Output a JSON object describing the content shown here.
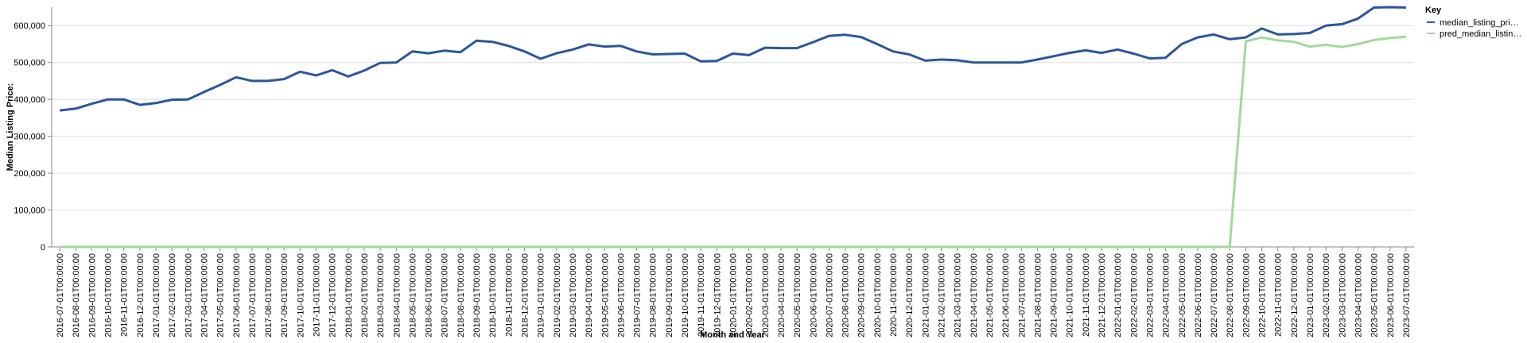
{
  "chart_data": {
    "type": "line",
    "x_label": "Month and Year",
    "y_label": "Median Listing Price:",
    "legend_title": "Key",
    "legend_position": "right",
    "grid": true,
    "categories": [
      "2016-07-01T00:00:00",
      "2016-08-01T00:00:00",
      "2016-09-01T00:00:00",
      "2016-10-01T00:00:00",
      "2016-11-01T00:00:00",
      "2016-12-01T00:00:00",
      "2017-01-01T00:00:00",
      "2017-02-01T00:00:00",
      "2017-03-01T00:00:00",
      "2017-04-01T00:00:00",
      "2017-05-01T00:00:00",
      "2017-06-01T00:00:00",
      "2017-07-01T00:00:00",
      "2017-08-01T00:00:00",
      "2017-09-01T00:00:00",
      "2017-10-01T00:00:00",
      "2017-11-01T00:00:00",
      "2017-12-01T00:00:00",
      "2018-01-01T00:00:00",
      "2018-02-01T00:00:00",
      "2018-03-01T00:00:00",
      "2018-04-01T00:00:00",
      "2018-05-01T00:00:00",
      "2018-06-01T00:00:00",
      "2018-07-01T00:00:00",
      "2018-08-01T00:00:00",
      "2018-09-01T00:00:00",
      "2018-10-01T00:00:00",
      "2018-11-01T00:00:00",
      "2018-12-01T00:00:00",
      "2019-01-01T00:00:00",
      "2019-02-01T00:00:00",
      "2019-03-01T00:00:00",
      "2019-04-01T00:00:00",
      "2019-05-01T00:00:00",
      "2019-06-01T00:00:00",
      "2019-07-01T00:00:00",
      "2019-08-01T00:00:00",
      "2019-09-01T00:00:00",
      "2019-10-01T00:00:00",
      "2019-11-01T00:00:00",
      "2019-12-01T00:00:00",
      "2020-01-01T00:00:00",
      "2020-02-01T00:00:00",
      "2020-03-01T00:00:00",
      "2020-04-01T00:00:00",
      "2020-05-01T00:00:00",
      "2020-06-01T00:00:00",
      "2020-07-01T00:00:00",
      "2020-08-01T00:00:00",
      "2020-09-01T00:00:00",
      "2020-10-01T00:00:00",
      "2020-11-01T00:00:00",
      "2020-12-01T00:00:00",
      "2021-01-01T00:00:00",
      "2021-02-01T00:00:00",
      "2021-03-01T00:00:00",
      "2021-04-01T00:00:00",
      "2021-05-01T00:00:00",
      "2021-06-01T00:00:00",
      "2021-07-01T00:00:00",
      "2021-08-01T00:00:00",
      "2021-09-01T00:00:00",
      "2021-10-01T00:00:00",
      "2021-11-01T00:00:00",
      "2021-12-01T00:00:00",
      "2022-01-01T00:00:00",
      "2022-02-01T00:00:00",
      "2022-03-01T00:00:00",
      "2022-04-01T00:00:00",
      "2022-05-01T00:00:00",
      "2022-06-01T00:00:00",
      "2022-07-01T00:00:00",
      "2022-08-01T00:00:00",
      "2022-09-01T00:00:00",
      "2022-10-01T00:00:00",
      "2022-11-01T00:00:00",
      "2022-12-01T00:00:00",
      "2023-01-01T00:00:00",
      "2023-02-01T00:00:00",
      "2023-03-01T00:00:00",
      "2023-04-01T00:00:00",
      "2023-05-01T00:00:00",
      "2023-06-01T00:00:00",
      "2023-07-01T00:00:00"
    ],
    "series": [
      {
        "name": "median_listing_pri…",
        "color": "#2b5699",
        "values": [
          370000,
          375000,
          388000,
          400000,
          400000,
          385000,
          390000,
          399000,
          400000,
          420000,
          439000,
          460000,
          450000,
          450000,
          455000,
          475000,
          465000,
          479000,
          462000,
          478000,
          499000,
          500000,
          530000,
          525000,
          532000,
          528000,
          559000,
          556000,
          545000,
          530000,
          510000,
          525000,
          535000,
          549000,
          543000,
          545000,
          530000,
          522000,
          523000,
          524000,
          503000,
          504000,
          524000,
          520000,
          540000,
          539000,
          539000,
          555000,
          572000,
          575000,
          569000,
          550000,
          530000,
          522000,
          505000,
          508000,
          506000,
          500000,
          500000,
          500000,
          500000,
          508000,
          517000,
          526000,
          533000,
          526000,
          535000,
          524000,
          511000,
          513000,
          550000,
          568000,
          576000,
          563000,
          568000,
          592000,
          576000,
          577000,
          580000,
          600000,
          604000,
          619000,
          649000,
          650000,
          649000
        ]
      },
      {
        "name": "pred_median_listin…",
        "color": "#a1d99b",
        "values": [
          0,
          0,
          0,
          0,
          0,
          0,
          0,
          0,
          0,
          0,
          0,
          0,
          0,
          0,
          0,
          0,
          0,
          0,
          0,
          0,
          0,
          0,
          0,
          0,
          0,
          0,
          0,
          0,
          0,
          0,
          0,
          0,
          0,
          0,
          0,
          0,
          0,
          0,
          0,
          0,
          0,
          0,
          0,
          0,
          0,
          0,
          0,
          0,
          0,
          0,
          0,
          0,
          0,
          0,
          0,
          0,
          0,
          0,
          0,
          0,
          0,
          0,
          0,
          0,
          0,
          0,
          0,
          0,
          0,
          0,
          0,
          0,
          0,
          0,
          557000,
          568000,
          560000,
          556000,
          543000,
          548000,
          542000,
          550000,
          561000,
          566000,
          570000
        ]
      }
    ],
    "ylim": [
      0,
      650000
    ],
    "yticks": [
      0,
      {
        "value": 100000,
        "label": "100,000"
      },
      {
        "value": 200000,
        "label": "200,000"
      },
      {
        "value": 300000,
        "label": "300,000"
      },
      {
        "value": 400000,
        "label": "400,000"
      },
      {
        "value": 500000,
        "label": "500,000"
      },
      {
        "value": 600000,
        "label": "600,000"
      }
    ]
  }
}
